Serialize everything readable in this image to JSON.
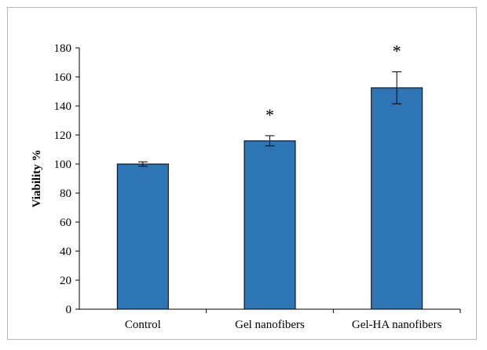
{
  "chart_data": {
    "type": "bar",
    "title": "",
    "xlabel": "",
    "ylabel": "Viability %",
    "ylim": [
      0,
      180
    ],
    "yticks": [
      0,
      20,
      40,
      60,
      80,
      100,
      120,
      140,
      160,
      180
    ],
    "categories": [
      "Control",
      "Gel nanofibers",
      "Gel-HA nanofibers"
    ],
    "values": [
      100,
      116,
      152.5
    ],
    "error": [
      1.5,
      3.5,
      11
    ],
    "annotations": [
      "",
      "*",
      "*"
    ],
    "grid": false,
    "legend": "none",
    "bar_color": "#2E75B6",
    "bar_edge_color": "#000000"
  }
}
